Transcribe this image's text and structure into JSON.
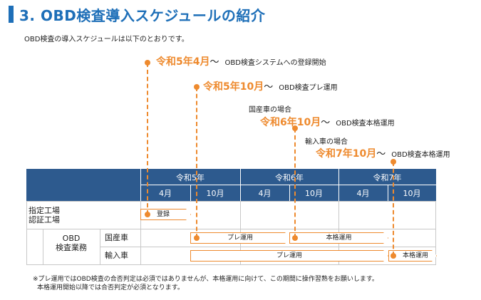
{
  "page": {
    "title": "3. OBD検査導入スケジュールの紹介",
    "intro": "OBD検査の導入スケジュールは以下のとおりです。"
  },
  "annotations": [
    {
      "date": "令和5年4月",
      "tilde": "～",
      "text": "OBD検査システムへの登録開始"
    },
    {
      "date": "令和5年10月",
      "tilde": "～",
      "text": "OBD検査プレ運用"
    },
    {
      "prefix": "国産車の場合",
      "date": "令和6年10月",
      "tilde": "～",
      "text": "OBD検査本格運用"
    },
    {
      "prefix": "輸入車の場合",
      "date": "令和7年10月",
      "tilde": "～",
      "text": "OBD検査本格運用"
    }
  ],
  "table": {
    "years": [
      "令和5年",
      "令和6年",
      "令和7年"
    ],
    "months": [
      "4月",
      "10月",
      "4月",
      "10月",
      "4月",
      "10月"
    ],
    "rows": {
      "factory": "指定工場\n認証工場",
      "obd": "OBD\n検査業務",
      "domestic": "国産車",
      "imported": "輸入車"
    },
    "bars": {
      "registration": "登録",
      "domestic_pre": "プレ運用",
      "domestic_full": "本格運用",
      "imported_pre": "プレ運用",
      "imported_full": "本格運用"
    }
  },
  "notes": [
    "※プレ運用ではOBD検査の合否判定は必須ではありませんが、本格運用に向けて、この期間に操作習熟をお願いします。",
    "本格運用開始以降では合否判定が必須となります。"
  ],
  "colors": {
    "accent": "#ee8a2e",
    "header": "#2d5a8e",
    "title": "#1e6fb8"
  }
}
